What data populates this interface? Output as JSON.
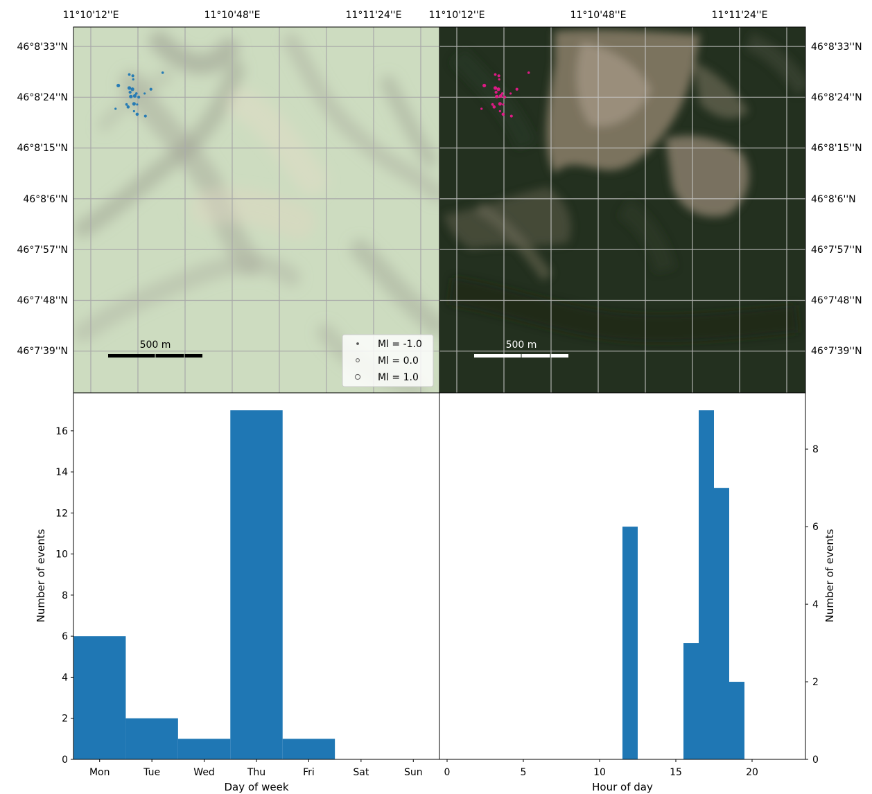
{
  "chart_data": [
    {
      "type": "scatter",
      "basemap": "terrain",
      "top_tick_labels": [
        "11°10'12''E",
        "11°10'48''E",
        "11°11'24''E"
      ],
      "side_tick_labels": [
        "46°8'33''N",
        "46°8'24''N",
        "46°8'15''N",
        "46°8'6''N",
        "46°7'57''N",
        "46°7'48''N",
        "46°7'39''N"
      ],
      "scale_bar_label": "500 m",
      "legend": [
        {
          "label": "Ml = -1.0",
          "ml": -1.0
        },
        {
          "label": "Ml = 0.0",
          "ml": 0.0
        },
        {
          "label": "Ml = 1.0",
          "ml": 1.0
        }
      ],
      "point_color": "#1f77b4",
      "points": [
        {
          "lon": 11.177,
          "lat": 46.1361,
          "ml": 0.0
        },
        {
          "lon": 11.1798,
          "lat": 46.1379,
          "ml": -0.7
        },
        {
          "lon": 11.1807,
          "lat": 46.1377,
          "ml": -0.5
        },
        {
          "lon": 11.1808,
          "lat": 46.1371,
          "ml": -1.0
        },
        {
          "lon": 11.1883,
          "lat": 46.1382,
          "ml": -0.8
        },
        {
          "lon": 11.1798,
          "lat": 46.1357,
          "ml": 0.0
        },
        {
          "lon": 11.1806,
          "lat": 46.1355,
          "ml": 0.0
        },
        {
          "lon": 11.18,
          "lat": 46.135,
          "ml": -0.5
        },
        {
          "lon": 11.1816,
          "lat": 46.1348,
          "ml": -0.8
        },
        {
          "lon": 11.1802,
          "lat": 46.1343,
          "ml": 0.0
        },
        {
          "lon": 11.1812,
          "lat": 46.1344,
          "ml": 0.0
        },
        {
          "lon": 11.1822,
          "lat": 46.1342,
          "ml": -0.5
        },
        {
          "lon": 11.1837,
          "lat": 46.1348,
          "ml": -1.0
        },
        {
          "lon": 11.1853,
          "lat": 46.1355,
          "ml": -0.5
        },
        {
          "lon": 11.1791,
          "lat": 46.133,
          "ml": -0.7
        },
        {
          "lon": 11.181,
          "lat": 46.1331,
          "ml": 0.0
        },
        {
          "lon": 11.1818,
          "lat": 46.133,
          "ml": -1.0
        },
        {
          "lon": 11.1795,
          "lat": 46.1326,
          "ml": -0.3
        },
        {
          "lon": 11.1763,
          "lat": 46.1323,
          "ml": -1.0
        },
        {
          "lon": 11.181,
          "lat": 46.1319,
          "ml": -1.0
        },
        {
          "lon": 11.1818,
          "lat": 46.1314,
          "ml": -0.3
        },
        {
          "lon": 11.1839,
          "lat": 46.1311,
          "ml": -0.5
        }
      ]
    },
    {
      "type": "scatter",
      "basemap": "satellite",
      "top_tick_labels": [
        "11°10'12''E",
        "11°10'48''E",
        "11°11'24''E"
      ],
      "side_tick_labels": [
        "46°8'33''N",
        "46°8'24''N",
        "46°8'15''N",
        "46°8'6''N",
        "46°7'57''N",
        "46°7'48''N",
        "46°7'39''N"
      ],
      "scale_bar_label": "500 m",
      "point_color": "#e8198b",
      "points": "same as terrain map"
    },
    {
      "type": "bar",
      "title": "",
      "xlabel": "Day of week",
      "ylabel": "Number of events",
      "categories": [
        "Mon",
        "Tue",
        "Wed",
        "Thu",
        "Fri",
        "Sat",
        "Sun"
      ],
      "values": [
        6,
        2,
        1,
        17,
        1,
        0,
        0
      ],
      "ylim": [
        0,
        17.85
      ],
      "yticks": [
        0,
        2,
        4,
        6,
        8,
        10,
        12,
        14,
        16
      ],
      "color": "#1f77b4"
    },
    {
      "type": "bar",
      "title": "",
      "xlabel": "Hour of day",
      "ylabel": "Number of events",
      "bins": [
        {
          "start": 11.5,
          "end": 12.5,
          "count": 6
        },
        {
          "start": 15.5,
          "end": 16.5,
          "count": 3
        },
        {
          "start": 16.5,
          "end": 17.5,
          "count": 9
        },
        {
          "start": 17.5,
          "end": 18.5,
          "count": 7
        },
        {
          "start": 18.5,
          "end": 19.5,
          "count": 2
        }
      ],
      "xlim": [
        -0.5,
        23.5
      ],
      "xticks": [
        0,
        5,
        10,
        15,
        20
      ],
      "ylim": [
        0,
        9.45
      ],
      "yticks": [
        0,
        2,
        4,
        6,
        8
      ],
      "color": "#1f77b4"
    }
  ]
}
